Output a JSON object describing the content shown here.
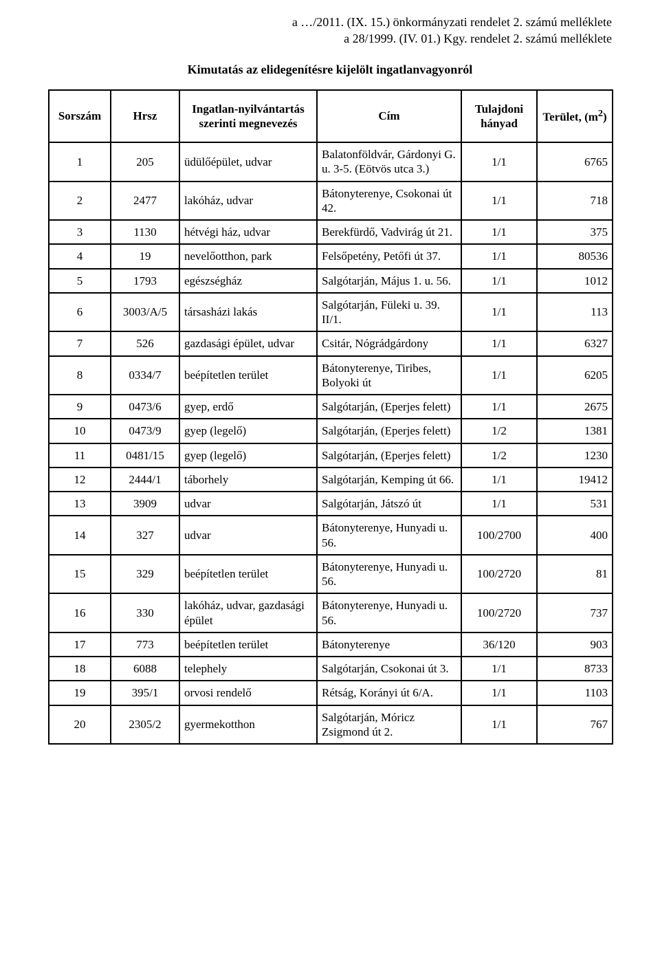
{
  "header": {
    "line1": "a …/2011. (IX. 15.) önkormányzati rendelet 2. számú melléklete",
    "line2": "a 28/1999. (IV. 01.) Kgy. rendelet 2. számú melléklete"
  },
  "subtitle": "Kimutatás az elidegenítésre kijelölt ingatlanvagyonról",
  "table": {
    "columns": [
      {
        "key": "sorszam",
        "label": "Sorszám",
        "align": "center"
      },
      {
        "key": "hrsz",
        "label": "Hrsz",
        "align": "center"
      },
      {
        "key": "megnevezes",
        "label": "Ingatlan-nyilvántartás szerinti megnevezés",
        "align": "left"
      },
      {
        "key": "cim",
        "label": "Cím",
        "align": "left"
      },
      {
        "key": "hanyad",
        "label": "Tulajdoni hányad",
        "align": "center"
      },
      {
        "key": "terulet",
        "label_prefix": "Terület, (m",
        "label_sup": "2",
        "label_suffix": ")",
        "align": "right"
      }
    ],
    "border_color": "#000000",
    "header_fontsize": 17,
    "cell_fontsize": 17,
    "rows": [
      {
        "sorszam": "1",
        "hrsz": "205",
        "megnevezes": "üdülőépület, udvar",
        "cim": "Balatonföldvár, Gárdonyi G. u. 3-5. (Eötvös utca 3.)",
        "hanyad": "1/1",
        "terulet": "6765"
      },
      {
        "sorszam": "2",
        "hrsz": "2477",
        "megnevezes": "lakóház, udvar",
        "cim": "Bátonyterenye, Csokonai út 42.",
        "hanyad": "1/1",
        "terulet": "718"
      },
      {
        "sorszam": "3",
        "hrsz": "1130",
        "megnevezes": "hétvégi ház, udvar",
        "cim": "Berekfürdő, Vadvirág út 21.",
        "hanyad": "1/1",
        "terulet": "375"
      },
      {
        "sorszam": "4",
        "hrsz": "19",
        "megnevezes": "nevelőotthon, park",
        "cim": "Felsőpetény, Petőfi út 37.",
        "hanyad": "1/1",
        "terulet": "80536"
      },
      {
        "sorszam": "5",
        "hrsz": "1793",
        "megnevezes": "egészségház",
        "cim": "Salgótarján, Május 1. u. 56.",
        "hanyad": "1/1",
        "terulet": "1012"
      },
      {
        "sorszam": "6",
        "hrsz": "3003/A/5",
        "megnevezes": "társasházi lakás",
        "cim": "Salgótarján, Füleki u. 39. II/1.",
        "hanyad": "1/1",
        "terulet": "113"
      },
      {
        "sorszam": "7",
        "hrsz": "526",
        "megnevezes": "gazdasági épület, udvar",
        "cim": "Csitár, Nógrádgárdony",
        "hanyad": "1/1",
        "terulet": "6327"
      },
      {
        "sorszam": "8",
        "hrsz": "0334/7",
        "megnevezes": "beépítetlen terület",
        "cim": "Bátonyterenye, Tiribes, Bolyoki út",
        "hanyad": "1/1",
        "terulet": "6205"
      },
      {
        "sorszam": "9",
        "hrsz": "0473/6",
        "megnevezes": "gyep, erdő",
        "cim": "Salgótarján, (Eperjes felett)",
        "hanyad": "1/1",
        "terulet": "2675"
      },
      {
        "sorszam": "10",
        "hrsz": "0473/9",
        "megnevezes": "gyep (legelő)",
        "cim": "Salgótarján, (Eperjes felett)",
        "hanyad": "1/2",
        "terulet": "1381"
      },
      {
        "sorszam": "11",
        "hrsz": "0481/15",
        "megnevezes": "gyep (legelő)",
        "cim": "Salgótarján, (Eperjes felett)",
        "hanyad": "1/2",
        "terulet": "1230"
      },
      {
        "sorszam": "12",
        "hrsz": "2444/1",
        "megnevezes": "táborhely",
        "cim": "Salgótarján, Kemping út 66.",
        "hanyad": "1/1",
        "terulet": "19412"
      },
      {
        "sorszam": "13",
        "hrsz": "3909",
        "megnevezes": "udvar",
        "cim": "Salgótarján, Játszó út",
        "hanyad": "1/1",
        "terulet": "531"
      },
      {
        "sorszam": "14",
        "hrsz": "327",
        "megnevezes": "udvar",
        "cim": "Bátonyterenye, Hunyadi u. 56.",
        "hanyad": "100/2700",
        "terulet": "400"
      },
      {
        "sorszam": "15",
        "hrsz": "329",
        "megnevezes": "beépítetlen terület",
        "cim": "Bátonyterenye, Hunyadi u. 56.",
        "hanyad": "100/2720",
        "terulet": "81"
      },
      {
        "sorszam": "16",
        "hrsz": "330",
        "megnevezes": "lakóház, udvar, gazdasági épület",
        "cim": "Bátonyterenye, Hunyadi u. 56.",
        "hanyad": "100/2720",
        "terulet": "737"
      },
      {
        "sorszam": "17",
        "hrsz": "773",
        "megnevezes": "beépítetlen terület",
        "cim": "Bátonyterenye",
        "hanyad": "36/120",
        "terulet": "903"
      },
      {
        "sorszam": "18",
        "hrsz": "6088",
        "megnevezes": "telephely",
        "cim": "Salgótarján, Csokonai út 3.",
        "hanyad": "1/1",
        "terulet": "8733"
      },
      {
        "sorszam": "19",
        "hrsz": "395/1",
        "megnevezes": "orvosi rendelő",
        "cim": "Rétság, Korányi út 6/A.",
        "hanyad": "1/1",
        "terulet": "1103"
      },
      {
        "sorszam": "20",
        "hrsz": "2305/2",
        "megnevezes": "gyermekotthon",
        "cim": "Salgótarján, Móricz Zsigmond út 2.",
        "hanyad": "1/1",
        "terulet": "767"
      }
    ]
  }
}
